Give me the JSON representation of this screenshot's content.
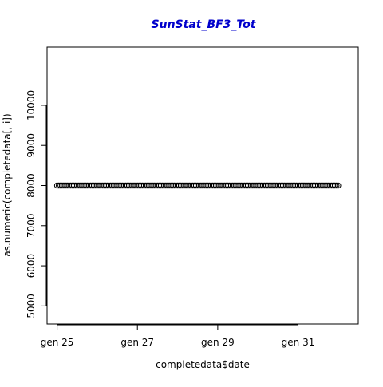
{
  "chart_data": {
    "type": "scatter",
    "title": "SunStat_BF3_Tot",
    "title_color": "#0000CC",
    "xlabel": "completedata$date",
    "ylabel": "as.numeric(completedata[, i])",
    "x_tick_labels": [
      "gen 25",
      "gen 27",
      "gen 29",
      "gen 31"
    ],
    "x_tick_dates": [
      "2015-01-25",
      "2015-01-27",
      "2015-01-29",
      "2015-01-31"
    ],
    "y_ticks": [
      5000,
      6000,
      7000,
      8000,
      9000,
      10000
    ],
    "xlim": [
      "2015-01-24T18:00",
      "2015-02-01T12:00"
    ],
    "ylim": [
      4550,
      11450
    ],
    "series": [
      {
        "x_range": [
          "2015-01-25T00:00",
          "2015-02-01T00:00"
        ],
        "x_step_minutes": 60,
        "y": 8000
      }
    ],
    "marker": "open-circle",
    "marker_color": "#000000"
  }
}
